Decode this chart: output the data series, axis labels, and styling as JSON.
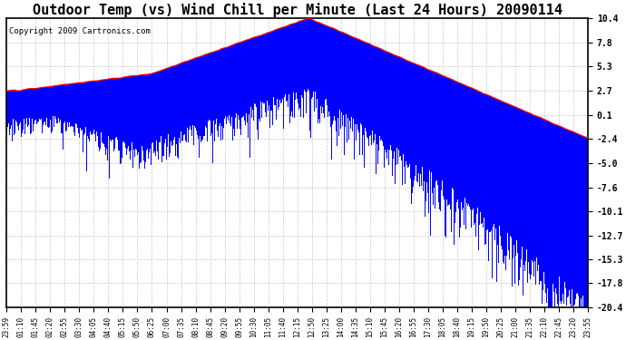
{
  "title": "Outdoor Temp (vs) Wind Chill per Minute (Last 24 Hours) 20090114",
  "copyright": "Copyright 2009 Cartronics.com",
  "yticks": [
    10.4,
    7.8,
    5.3,
    2.7,
    0.1,
    -2.4,
    -5.0,
    -7.6,
    -10.1,
    -12.7,
    -15.3,
    -17.8,
    -20.4
  ],
  "background_color": "#ffffff",
  "grid_color": "#bbbbbb",
  "bar_color": "#0000ff",
  "line_color": "#ff0000",
  "title_fontsize": 11,
  "copyright_fontsize": 6.5,
  "ylim_min": -20.4,
  "ylim_max": 10.4,
  "xtick_labels": [
    "23:59",
    "01:10",
    "01:45",
    "02:20",
    "02:55",
    "03:30",
    "04:05",
    "04:40",
    "05:15",
    "05:50",
    "06:25",
    "07:00",
    "07:35",
    "08:10",
    "08:45",
    "09:20",
    "09:55",
    "10:30",
    "11:05",
    "11:40",
    "12:15",
    "12:50",
    "13:25",
    "14:00",
    "14:35",
    "15:10",
    "15:45",
    "16:20",
    "16:55",
    "17:30",
    "18:05",
    "18:40",
    "19:15",
    "19:50",
    "20:25",
    "21:00",
    "21:35",
    "22:10",
    "22:45",
    "23:20",
    "23:55"
  ]
}
